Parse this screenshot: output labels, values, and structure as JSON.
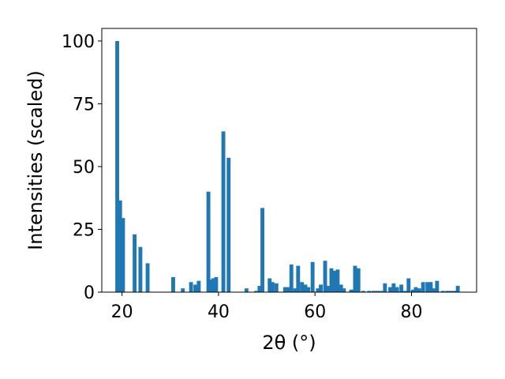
{
  "chart_data": {
    "type": "bar",
    "xlabel": "2θ (°)",
    "ylabel": "Intensities (scaled)",
    "xlim": [
      15.8,
      93.5
    ],
    "ylim": [
      0,
      105
    ],
    "xticks": [
      20,
      40,
      60,
      80
    ],
    "yticks": [
      0,
      25,
      50,
      75,
      100
    ],
    "bar_width": 0.8,
    "color": "#1f77b4",
    "grid": false,
    "x": [
      19.0,
      19.6,
      20.2,
      22.6,
      23.8,
      25.3,
      30.6,
      32.6,
      34.3,
      35.2,
      35.9,
      37.9,
      38.4,
      38.9,
      39.5,
      41.0,
      42.1,
      45.8,
      47.8,
      48.5,
      49.1,
      50.6,
      51.2,
      52.0,
      53.8,
      54.4,
      55.1,
      55.9,
      56.5,
      57.3,
      58.0,
      58.6,
      59.5,
      60.6,
      61.2,
      62.1,
      62.6,
      63.4,
      64.0,
      64.7,
      65.4,
      66.0,
      67.5,
      68.3,
      69.0,
      70.0,
      71.2,
      72.1,
      72.9,
      73.7,
      74.5,
      75.6,
      76.3,
      77.0,
      77.9,
      78.7,
      79.4,
      80.3,
      80.9,
      81.6,
      82.4,
      83.3,
      84.0,
      84.6,
      85.3,
      86.5,
      87.4,
      88.1,
      88.9,
      89.6
    ],
    "values": [
      100,
      36.5,
      29.5,
      23,
      18,
      11.5,
      6,
      1.5,
      4,
      3,
      4.5,
      40,
      5,
      5.5,
      6,
      64,
      53.5,
      1.5,
      0.5,
      2.5,
      33.5,
      5.5,
      4,
      3.5,
      2,
      2,
      11,
      1.5,
      10.5,
      4,
      3,
      2,
      12,
      1.5,
      3,
      12.5,
      2.5,
      9.5,
      8.5,
      9,
      3,
      1.5,
      1,
      10.5,
      9.5,
      0.5,
      0.5,
      0.5,
      0.5,
      0.5,
      3.5,
      2,
      3.5,
      2,
      3,
      0.5,
      5.5,
      1,
      2,
      1.5,
      4,
      4,
      4,
      1.5,
      4.5,
      0.5,
      0.5,
      0.5,
      0.5,
      2.5
    ]
  }
}
